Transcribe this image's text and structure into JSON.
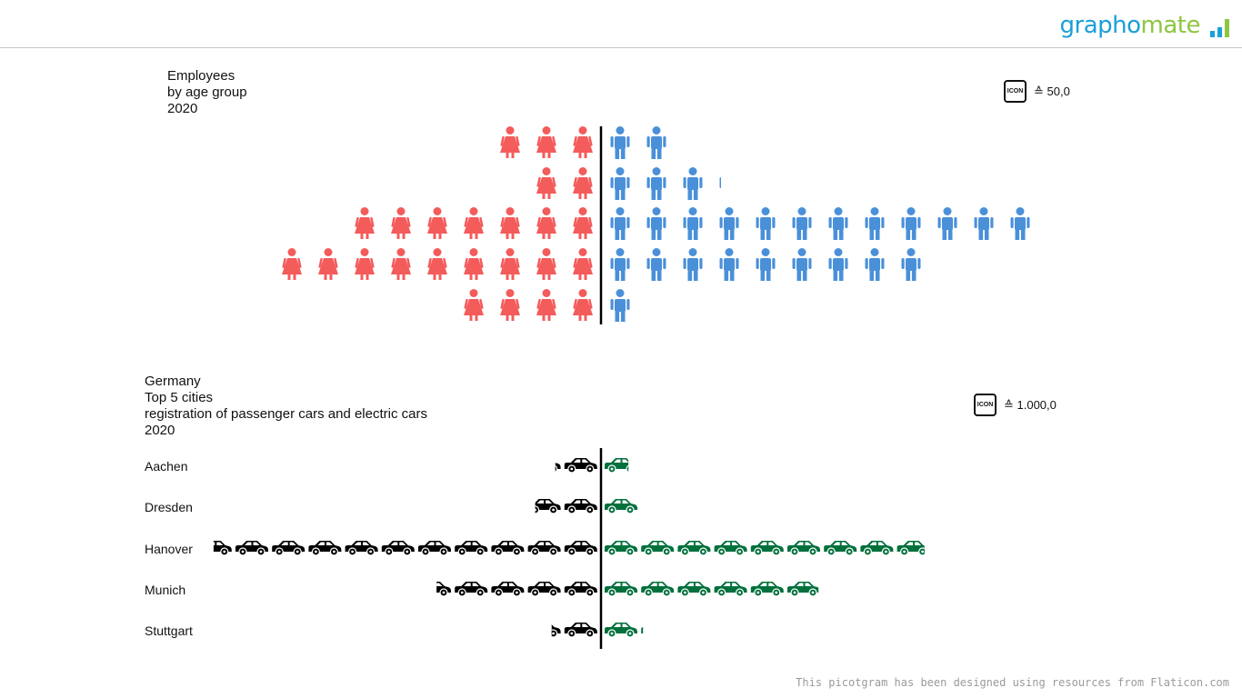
{
  "brand": {
    "name": "graphomate",
    "name_part1": "grapho",
    "name_part2": "mate",
    "colors": {
      "part1": "#1a9fd8",
      "part2": "#8dc63f",
      "bars": [
        "#1a9fd8",
        "#1a9fd8",
        "#8dc63f"
      ]
    }
  },
  "footer": {
    "credit": "This picotgram has been designed using resources from Flaticon.com"
  },
  "colors": {
    "female": "#f45b5b",
    "male": "#4a90d9",
    "passenger": "#000000",
    "electric": "#00703c",
    "axis": "#000000"
  },
  "chart_data": [
    {
      "type": "pictogram",
      "title_lines": [
        "Employees",
        "by age group",
        "2020"
      ],
      "legend": {
        "icon_label": "ICON",
        "unit_text": "≙ 50,0",
        "unit_value": 50
      },
      "icons": {
        "left": "female-person-icon",
        "right": "male-person-icon"
      },
      "series": [
        {
          "name": "",
          "side": "left",
          "icon_counts": [
            3,
            2,
            7,
            9,
            3.95
          ]
        },
        {
          "name": "",
          "side": "right",
          "icon_counts": [
            2.25,
            3.3,
            12,
            9.15,
            1.25
          ]
        }
      ]
    },
    {
      "type": "pictogram",
      "title_lines": [
        "Germany",
        "Top 5 cities",
        "registration of passenger cars and electric cars",
        "2020"
      ],
      "legend": {
        "icon_label": "ICON",
        "unit_text": "≙ 1.000,0",
        "unit_value": 1000
      },
      "icons": {
        "left": "passenger-car-icon",
        "right": "electric-car-icon"
      },
      "categories": [
        "Aachen",
        "Dresden",
        "Hanover",
        "Munich",
        "Stuttgart"
      ],
      "series": [
        {
          "name": "",
          "side": "left",
          "icon_counts": [
            1.2,
            1.75,
            10.55,
            4.45,
            1.3
          ]
        },
        {
          "name": "",
          "side": "right",
          "icon_counts": [
            0.7,
            0.95,
            8.8,
            5.9,
            1.1
          ]
        }
      ]
    }
  ]
}
